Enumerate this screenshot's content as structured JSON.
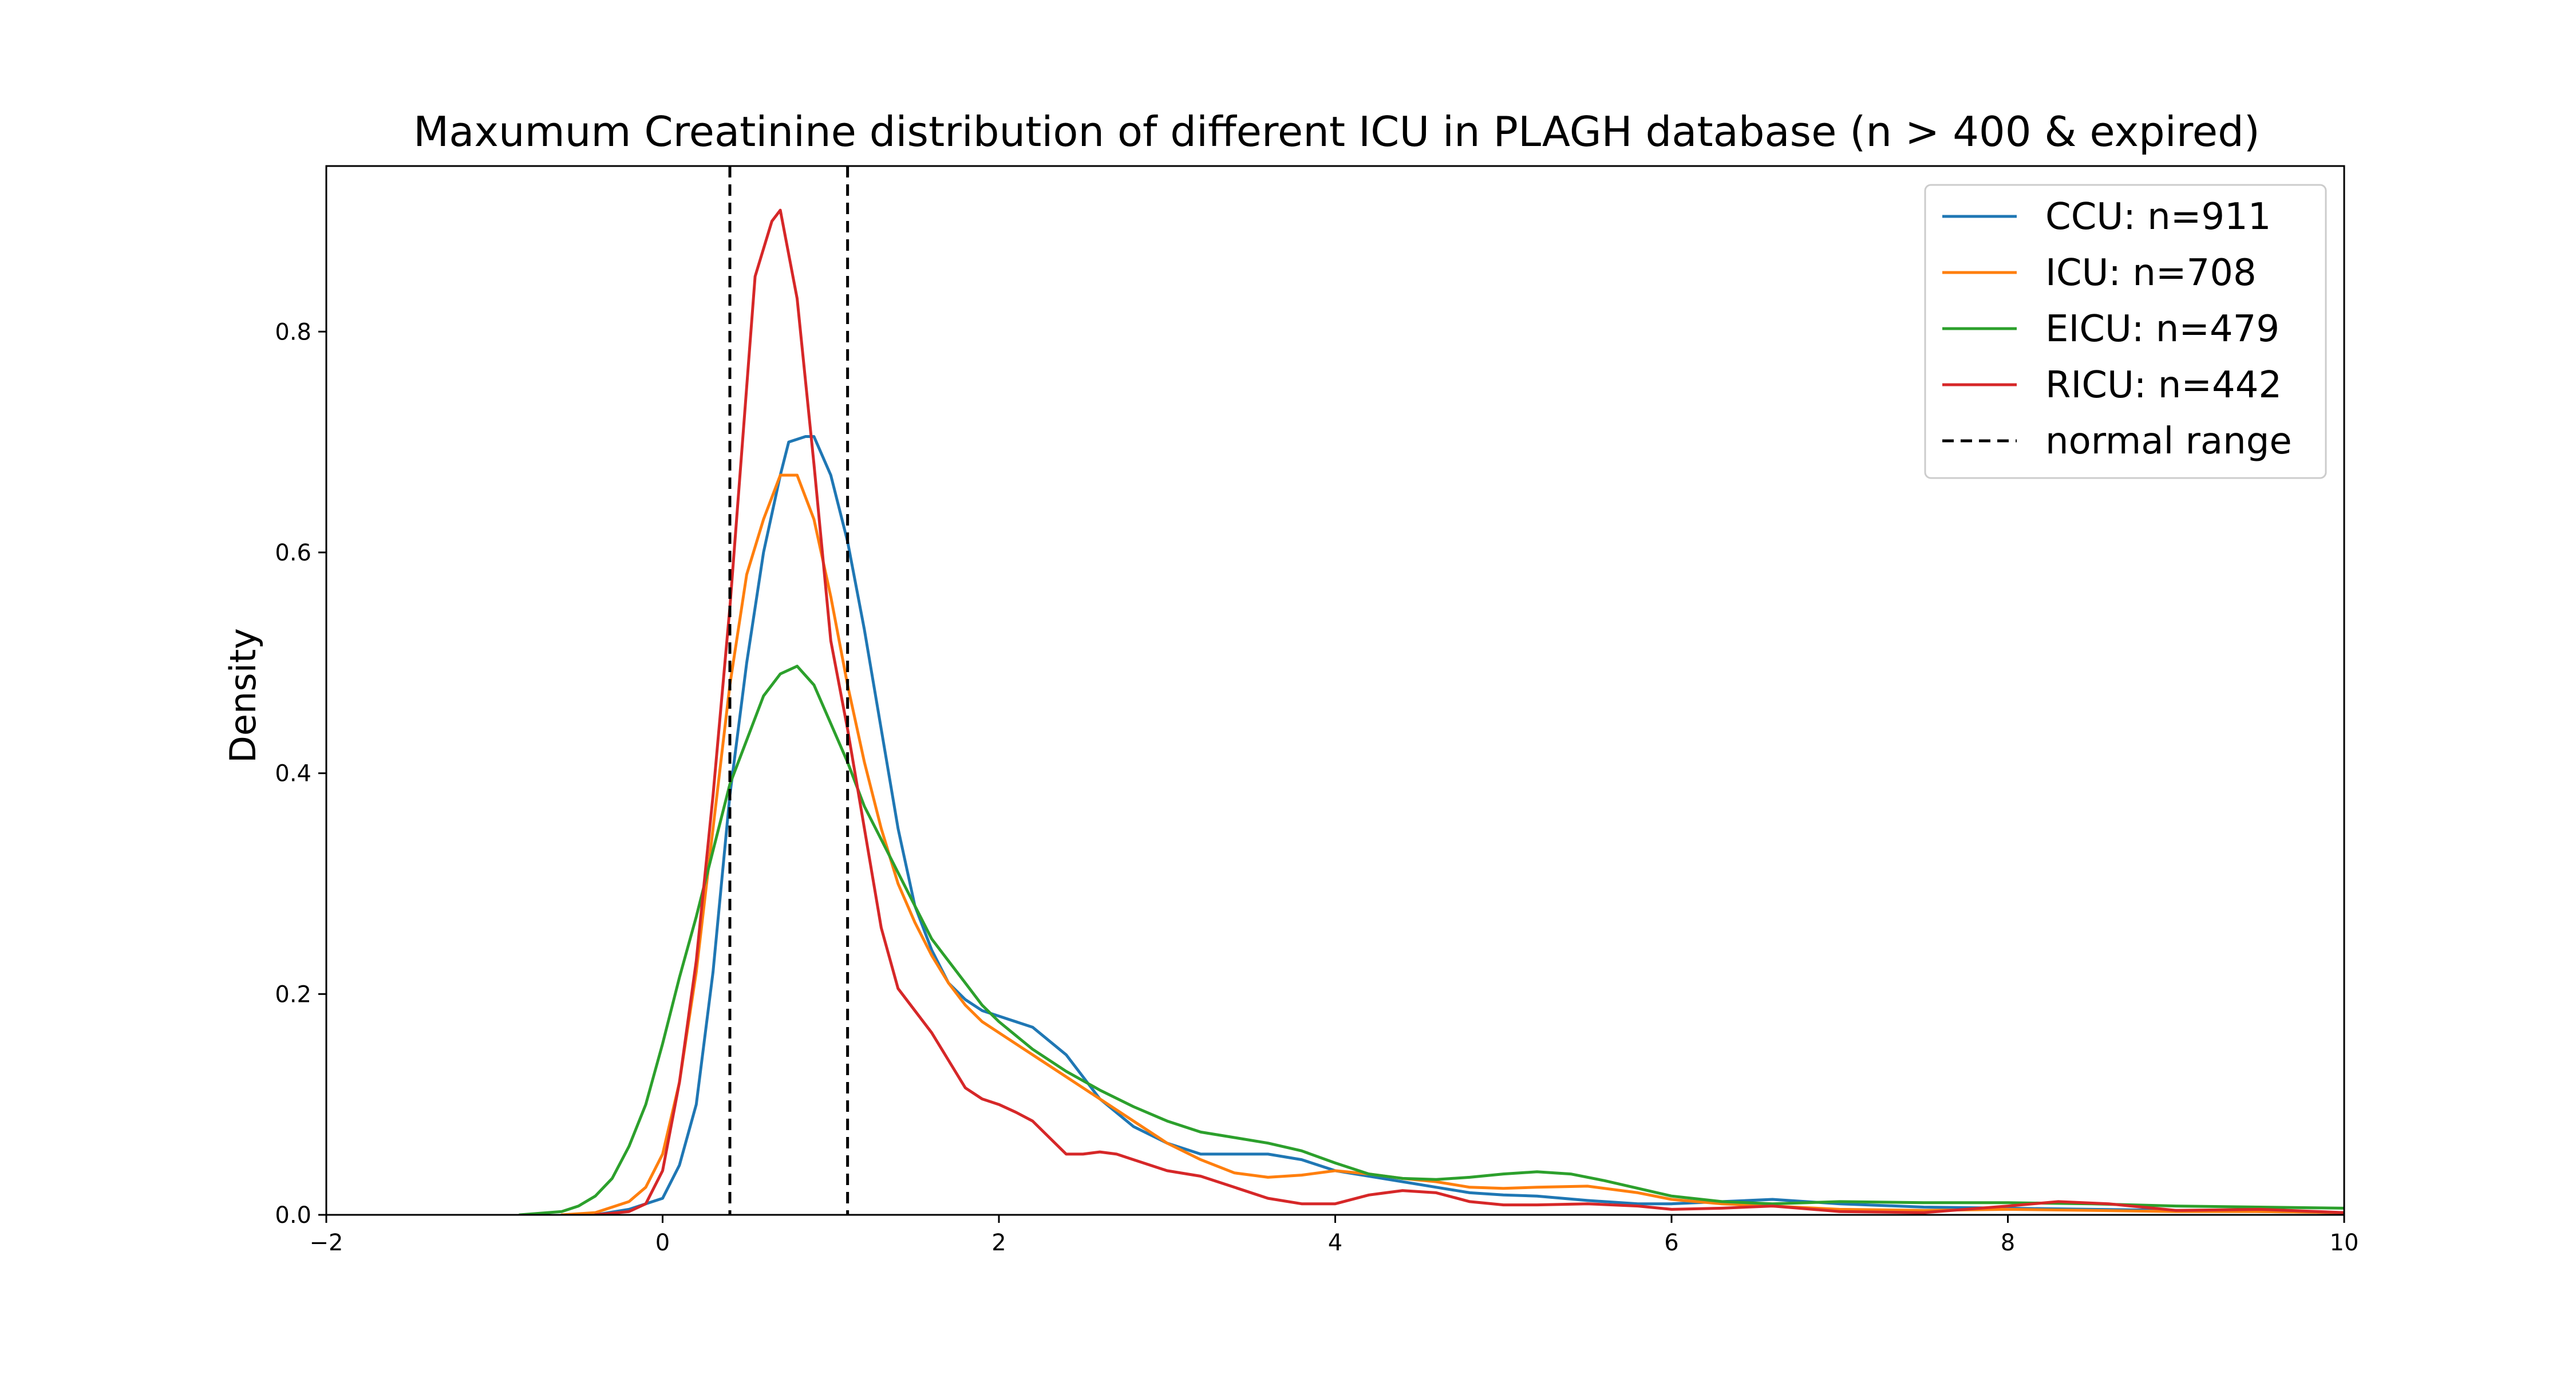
{
  "chart_data": {
    "type": "line",
    "title": "Maxumum Creatinine distribution of different ICU in PLAGH database (n > 400 & expired)",
    "xlabel": "",
    "ylabel": "Density",
    "xlim": [
      -2,
      10
    ],
    "ylim": [
      0,
      0.95
    ],
    "xticks": [
      -2,
      0,
      2,
      4,
      6,
      8,
      10
    ],
    "xtick_labels": [
      "−2",
      "0",
      "2",
      "4",
      "6",
      "8",
      "10"
    ],
    "yticks": [
      0.0,
      0.2,
      0.4,
      0.6,
      0.8
    ],
    "ytick_labels": [
      "0.0",
      "0.2",
      "0.4",
      "0.6",
      "0.8"
    ],
    "grid": false,
    "legend_position": "top-right",
    "reference_lines": {
      "label": "normal range",
      "style": "dashed",
      "color": "#000000",
      "x": [
        0.4,
        1.1
      ]
    },
    "series": [
      {
        "name": "CCU: n=911",
        "color": "#1f77b4",
        "x": [
          -0.4,
          -0.2,
          0.0,
          0.1,
          0.2,
          0.3,
          0.4,
          0.5,
          0.6,
          0.7,
          0.75,
          0.85,
          0.9,
          1.0,
          1.1,
          1.2,
          1.3,
          1.4,
          1.5,
          1.6,
          1.7,
          1.8,
          1.9,
          2.0,
          2.2,
          2.4,
          2.6,
          2.8,
          3.0,
          3.2,
          3.4,
          3.6,
          3.8,
          4.0,
          4.2,
          4.4,
          4.6,
          4.8,
          5.0,
          5.2,
          5.5,
          5.8,
          6.0,
          6.3,
          6.6,
          7.0,
          7.5,
          8.0,
          8.5,
          9.0,
          9.5,
          10.0
        ],
        "y": [
          0.0,
          0.005,
          0.015,
          0.045,
          0.1,
          0.22,
          0.38,
          0.5,
          0.6,
          0.67,
          0.7,
          0.705,
          0.705,
          0.67,
          0.61,
          0.53,
          0.44,
          0.35,
          0.28,
          0.24,
          0.21,
          0.195,
          0.185,
          0.18,
          0.17,
          0.145,
          0.105,
          0.08,
          0.065,
          0.055,
          0.055,
          0.055,
          0.05,
          0.04,
          0.035,
          0.03,
          0.025,
          0.02,
          0.018,
          0.017,
          0.013,
          0.01,
          0.01,
          0.012,
          0.014,
          0.01,
          0.007,
          0.006,
          0.005,
          0.004,
          0.003,
          0.002
        ]
      },
      {
        "name": "ICU: n=708",
        "color": "#ff7f0e",
        "x": [
          -0.6,
          -0.4,
          -0.2,
          -0.1,
          0.0,
          0.1,
          0.2,
          0.3,
          0.4,
          0.5,
          0.6,
          0.7,
          0.8,
          0.9,
          1.0,
          1.1,
          1.2,
          1.3,
          1.4,
          1.5,
          1.6,
          1.7,
          1.8,
          1.9,
          2.0,
          2.2,
          2.4,
          2.6,
          2.8,
          3.0,
          3.2,
          3.4,
          3.6,
          3.8,
          4.0,
          4.2,
          4.4,
          4.6,
          4.8,
          5.0,
          5.2,
          5.5,
          5.8,
          6.0,
          6.3,
          6.6,
          7.0,
          7.5,
          8.0,
          8.5,
          9.0,
          9.5,
          10.0
        ],
        "y": [
          0.0,
          0.002,
          0.012,
          0.025,
          0.055,
          0.12,
          0.22,
          0.35,
          0.48,
          0.58,
          0.63,
          0.67,
          0.67,
          0.63,
          0.56,
          0.48,
          0.41,
          0.35,
          0.3,
          0.265,
          0.235,
          0.21,
          0.19,
          0.175,
          0.165,
          0.145,
          0.125,
          0.105,
          0.085,
          0.065,
          0.05,
          0.038,
          0.034,
          0.036,
          0.04,
          0.037,
          0.033,
          0.03,
          0.025,
          0.024,
          0.025,
          0.026,
          0.02,
          0.014,
          0.01,
          0.008,
          0.005,
          0.004,
          0.005,
          0.004,
          0.003,
          0.003,
          0.002
        ]
      },
      {
        "name": "EICU: n=479",
        "color": "#2ca02c",
        "x": [
          -0.85,
          -0.6,
          -0.5,
          -0.4,
          -0.3,
          -0.2,
          -0.1,
          0.0,
          0.1,
          0.2,
          0.3,
          0.4,
          0.5,
          0.6,
          0.7,
          0.8,
          0.9,
          1.0,
          1.1,
          1.2,
          1.3,
          1.4,
          1.5,
          1.6,
          1.7,
          1.8,
          1.9,
          2.0,
          2.2,
          2.4,
          2.6,
          2.8,
          3.0,
          3.2,
          3.4,
          3.6,
          3.8,
          4.0,
          4.2,
          4.4,
          4.6,
          4.8,
          5.0,
          5.2,
          5.4,
          5.6,
          5.8,
          6.0,
          6.3,
          6.6,
          7.0,
          7.5,
          8.0,
          8.5,
          9.0,
          9.5,
          10.0
        ],
        "y": [
          0.0,
          0.003,
          0.008,
          0.017,
          0.033,
          0.062,
          0.1,
          0.155,
          0.215,
          0.27,
          0.33,
          0.39,
          0.43,
          0.47,
          0.49,
          0.497,
          0.48,
          0.445,
          0.41,
          0.37,
          0.34,
          0.31,
          0.28,
          0.25,
          0.23,
          0.21,
          0.19,
          0.175,
          0.15,
          0.13,
          0.113,
          0.098,
          0.085,
          0.075,
          0.07,
          0.065,
          0.058,
          0.047,
          0.037,
          0.033,
          0.032,
          0.034,
          0.037,
          0.039,
          0.037,
          0.031,
          0.024,
          0.017,
          0.012,
          0.01,
          0.012,
          0.011,
          0.011,
          0.01,
          0.008,
          0.007,
          0.006
        ]
      },
      {
        "name": "RICU: n=442",
        "color": "#d62728",
        "x": [
          -0.4,
          -0.2,
          -0.1,
          0.0,
          0.1,
          0.2,
          0.3,
          0.4,
          0.5,
          0.55,
          0.65,
          0.7,
          0.8,
          0.9,
          1.0,
          1.1,
          1.2,
          1.3,
          1.4,
          1.5,
          1.6,
          1.7,
          1.8,
          1.9,
          2.0,
          2.1,
          2.2,
          2.3,
          2.4,
          2.5,
          2.6,
          2.7,
          2.8,
          2.9,
          3.0,
          3.2,
          3.4,
          3.6,
          3.8,
          4.0,
          4.2,
          4.4,
          4.6,
          4.8,
          5.0,
          5.2,
          5.5,
          5.8,
          6.0,
          6.3,
          6.6,
          7.0,
          7.5,
          8.0,
          8.3,
          8.6,
          9.0,
          9.5,
          10.0
        ],
        "y": [
          0.0,
          0.003,
          0.01,
          0.04,
          0.12,
          0.23,
          0.38,
          0.55,
          0.75,
          0.85,
          0.9,
          0.91,
          0.83,
          0.68,
          0.52,
          0.44,
          0.35,
          0.26,
          0.205,
          0.185,
          0.165,
          0.14,
          0.115,
          0.105,
          0.1,
          0.093,
          0.085,
          0.07,
          0.055,
          0.055,
          0.057,
          0.055,
          0.05,
          0.045,
          0.04,
          0.035,
          0.025,
          0.015,
          0.01,
          0.01,
          0.018,
          0.022,
          0.02,
          0.012,
          0.009,
          0.009,
          0.01,
          0.008,
          0.005,
          0.006,
          0.008,
          0.003,
          0.002,
          0.008,
          0.012,
          0.01,
          0.004,
          0.005,
          0.002
        ]
      }
    ]
  }
}
